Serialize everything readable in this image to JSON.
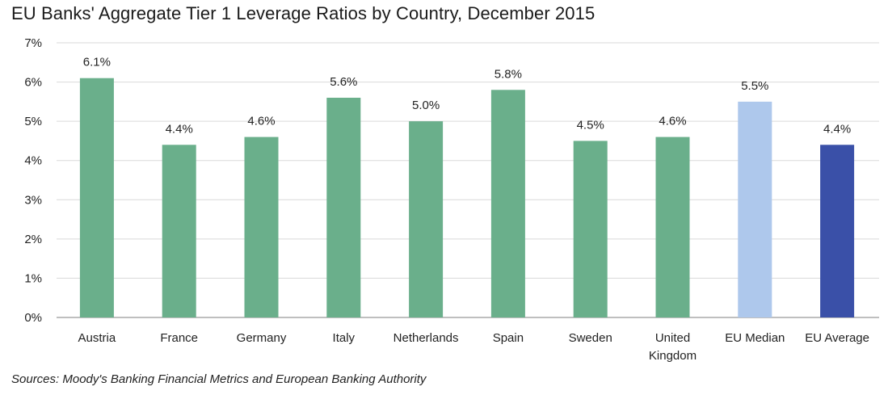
{
  "chart_data": {
    "type": "bar",
    "title": "EU Banks' Aggregate Tier 1 Leverage Ratios by Country, December 2015",
    "source": "Sources: Moody's Banking Financial Metrics and European Banking Authority",
    "categories": [
      [
        "Austria"
      ],
      [
        "France"
      ],
      [
        "Germany"
      ],
      [
        "Italy"
      ],
      [
        "Netherlands"
      ],
      [
        "Spain"
      ],
      [
        "Sweden"
      ],
      [
        "United",
        "Kingdom"
      ],
      [
        "EU Median"
      ],
      [
        "EU Average"
      ]
    ],
    "values": [
      6.1,
      4.4,
      4.6,
      5.6,
      5.0,
      5.8,
      4.5,
      4.6,
      5.5,
      4.4
    ],
    "value_labels": [
      "6.1%",
      "4.4%",
      "4.6%",
      "5.6%",
      "5.0%",
      "5.8%",
      "4.5%",
      "4.6%",
      "5.5%",
      "4.4%"
    ],
    "bar_colors": [
      "#6aaf8b",
      "#6aaf8b",
      "#6aaf8b",
      "#6aaf8b",
      "#6aaf8b",
      "#6aaf8b",
      "#6aaf8b",
      "#6aaf8b",
      "#aec8ec",
      "#3a50a8"
    ],
    "yticks": [
      "0%",
      "1%",
      "2%",
      "3%",
      "4%",
      "5%",
      "6%",
      "7%"
    ],
    "ylim": [
      0,
      7
    ],
    "grid": true,
    "legend": "none"
  }
}
